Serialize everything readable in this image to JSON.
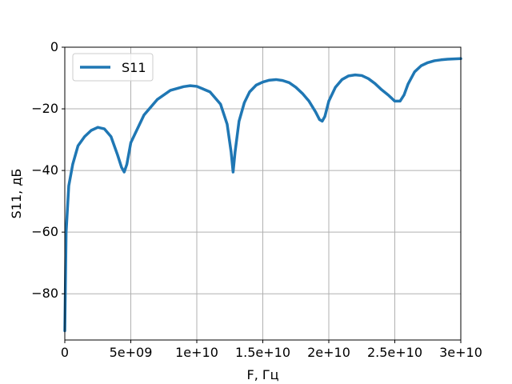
{
  "chart_data": {
    "type": "line",
    "title": "",
    "xlabel": "F, Гц",
    "ylabel": "S11, дБ",
    "xlim": [
      0,
      30000000000
    ],
    "ylim": [
      -95,
      0
    ],
    "xticks": [
      {
        "value": 0,
        "label": "0"
      },
      {
        "value": 5000000000,
        "label": "5e+09"
      },
      {
        "value": 10000000000,
        "label": "1e+10"
      },
      {
        "value": 15000000000,
        "label": "1.5e+10"
      },
      {
        "value": 20000000000,
        "label": "2e+10"
      },
      {
        "value": 25000000000,
        "label": "2.5e+10"
      },
      {
        "value": 30000000000,
        "label": "3e+10"
      }
    ],
    "yticks": [
      {
        "value": 0,
        "label": "0"
      },
      {
        "value": -20,
        "label": "−20"
      },
      {
        "value": -40,
        "label": "−40"
      },
      {
        "value": -60,
        "label": "−60"
      },
      {
        "value": -80,
        "label": "−80"
      }
    ],
    "grid": true,
    "legend_position": "top-left",
    "series": [
      {
        "name": "S11",
        "color": "#1f77b4",
        "x": [
          0,
          100000000,
          300000000,
          600000000,
          1000000000,
          1500000000,
          2000000000,
          2500000000,
          3000000000,
          3500000000,
          4000000000,
          4300000000,
          4500000000,
          4700000000,
          5000000000,
          6000000000,
          7000000000,
          8000000000,
          9000000000,
          9500000000,
          10000000000,
          11000000000,
          11800000000,
          12300000000,
          12600000000,
          12750000000,
          12900000000,
          13200000000,
          13600000000,
          14000000000,
          14500000000,
          15000000000,
          15500000000,
          16000000000,
          16500000000,
          17000000000,
          17500000000,
          18000000000,
          18500000000,
          19000000000,
          19300000000,
          19500000000,
          19700000000,
          20000000000,
          20500000000,
          21000000000,
          21500000000,
          22000000000,
          22500000000,
          23000000000,
          23500000000,
          24000000000,
          24500000000,
          25000000000,
          25400000000,
          25700000000,
          26000000000,
          26500000000,
          27000000000,
          27500000000,
          28000000000,
          28500000000,
          29000000000,
          29500000000,
          30000000000
        ],
        "y": [
          -92,
          -60,
          -45,
          -38,
          -32,
          -29,
          -27,
          -26,
          -26.5,
          -29,
          -35,
          -39,
          -40.5,
          -38,
          -31,
          -22,
          -17,
          -14,
          -12.8,
          -12.5,
          -12.7,
          -14.5,
          -18.5,
          -25,
          -34,
          -40.5,
          -34,
          -24,
          -18,
          -14.5,
          -12.3,
          -11.3,
          -10.7,
          -10.5,
          -10.8,
          -11.5,
          -13,
          -15,
          -17.5,
          -21,
          -23.5,
          -24,
          -22.5,
          -17.5,
          -13,
          -10.5,
          -9.3,
          -9,
          -9.2,
          -10.2,
          -11.8,
          -13.8,
          -15.5,
          -17.5,
          -17.5,
          -15.5,
          -12,
          -8,
          -6,
          -5,
          -4.4,
          -4.1,
          -3.9,
          -3.8,
          -3.7
        ]
      }
    ]
  }
}
